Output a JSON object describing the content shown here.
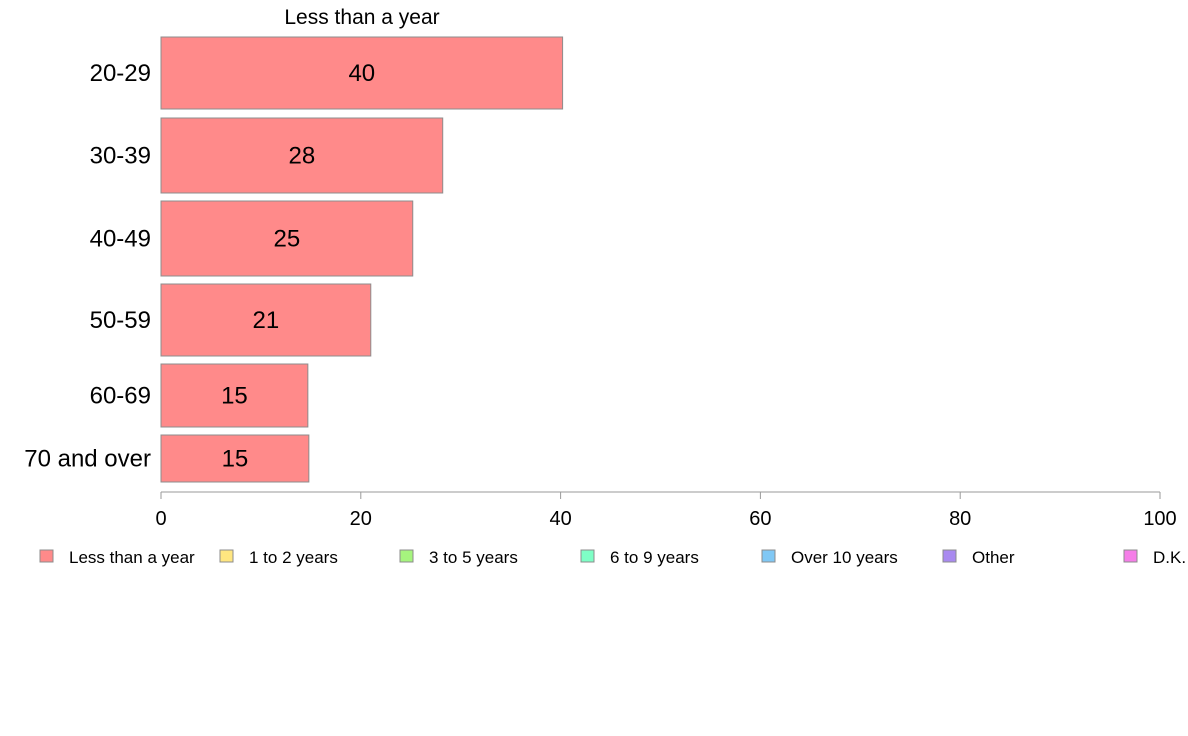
{
  "chart_data": {
    "type": "bar",
    "orientation": "horizontal",
    "series_title": "Less than a year",
    "categories": [
      "20-29",
      "30-39",
      "40-49",
      "50-59",
      "60-69",
      "70 and over"
    ],
    "series": [
      {
        "name": "Less than a year",
        "values": [
          40.2,
          28.2,
          25.2,
          21.0,
          14.7,
          14.8
        ],
        "labels": [
          "40",
          "28",
          "25",
          "21",
          "15",
          "15"
        ],
        "color": "#ff8a8a"
      }
    ],
    "xlim": [
      0,
      100
    ],
    "xticks": [
      "0",
      "20",
      "40",
      "60",
      "80",
      "100"
    ],
    "grid": false,
    "legend_position": "bottom",
    "legend": [
      {
        "label": "Less than a year",
        "color": "#ff8a8a"
      },
      {
        "label": "1 to 2 years",
        "color": "#ffe680"
      },
      {
        "label": "3 to 5 years",
        "color": "#a6f57e"
      },
      {
        "label": "6 to 9 years",
        "color": "#7effc6"
      },
      {
        "label": "Over 10 years",
        "color": "#80c8f5"
      },
      {
        "label": "Other",
        "color": "#a98af0"
      },
      {
        "label": "D.K.",
        "color": "#f57ee8"
      }
    ]
  }
}
